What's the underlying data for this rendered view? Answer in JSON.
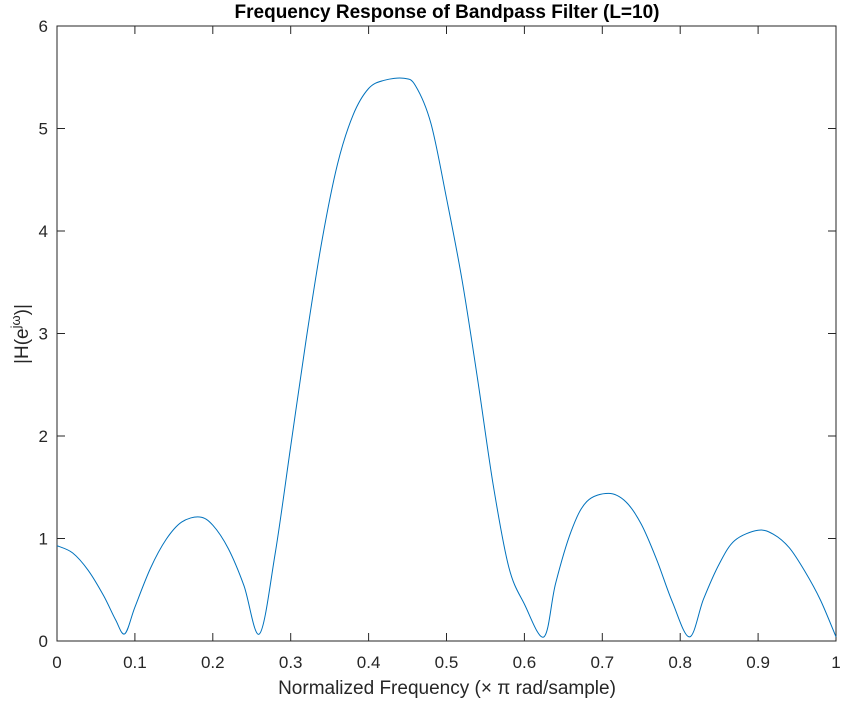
{
  "chart_data": {
    "type": "line",
    "title": "Frequency Response of Bandpass Filter (L=10)",
    "xlabel": "Normalized Frequency (× π rad/sample)",
    "ylabel": "|H(e^{jω})|",
    "ylabel_parts": {
      "main": "|H(e",
      "sup": "jω",
      "close": ")|"
    },
    "xlim": [
      0,
      1
    ],
    "ylim": [
      0,
      6
    ],
    "xticks": [
      0,
      0.1,
      0.2,
      0.3,
      0.4,
      0.5,
      0.6,
      0.7,
      0.8,
      0.9,
      1
    ],
    "xtick_labels": [
      "0",
      "0.1",
      "0.2",
      "0.3",
      "0.4",
      "0.5",
      "0.6",
      "0.7",
      "0.8",
      "0.9",
      "1"
    ],
    "yticks": [
      0,
      1,
      2,
      3,
      4,
      5,
      6
    ],
    "ytick_labels": [
      "0",
      "1",
      "2",
      "3",
      "4",
      "5",
      "6"
    ],
    "grid": false,
    "box": true,
    "series": [
      {
        "color": "#0072bd",
        "x": [
          0,
          0.02,
          0.04,
          0.06,
          0.075,
          0.087,
          0.1,
          0.12,
          0.14,
          0.16,
          0.183,
          0.2,
          0.22,
          0.24,
          0.26,
          0.28,
          0.3,
          0.32,
          0.34,
          0.36,
          0.38,
          0.4,
          0.42,
          0.445,
          0.46,
          0.48,
          0.5,
          0.52,
          0.54,
          0.56,
          0.58,
          0.6,
          0.625,
          0.64,
          0.66,
          0.68,
          0.708,
          0.73,
          0.75,
          0.77,
          0.79,
          0.812,
          0.83,
          0.85,
          0.87,
          0.9,
          0.92,
          0.94,
          0.96,
          0.98,
          1.0
        ],
        "y": [
          0.93,
          0.86,
          0.69,
          0.44,
          0.21,
          0.07,
          0.33,
          0.71,
          0.99,
          1.16,
          1.21,
          1.13,
          0.9,
          0.54,
          0.07,
          0.85,
          1.9,
          2.95,
          3.9,
          4.65,
          5.13,
          5.39,
          5.47,
          5.49,
          5.42,
          5.05,
          4.32,
          3.52,
          2.55,
          1.52,
          0.72,
          0.36,
          0.04,
          0.56,
          1.07,
          1.36,
          1.44,
          1.36,
          1.14,
          0.79,
          0.38,
          0.04,
          0.41,
          0.75,
          0.98,
          1.08,
          1.04,
          0.91,
          0.68,
          0.4,
          0.04
        ]
      }
    ]
  }
}
